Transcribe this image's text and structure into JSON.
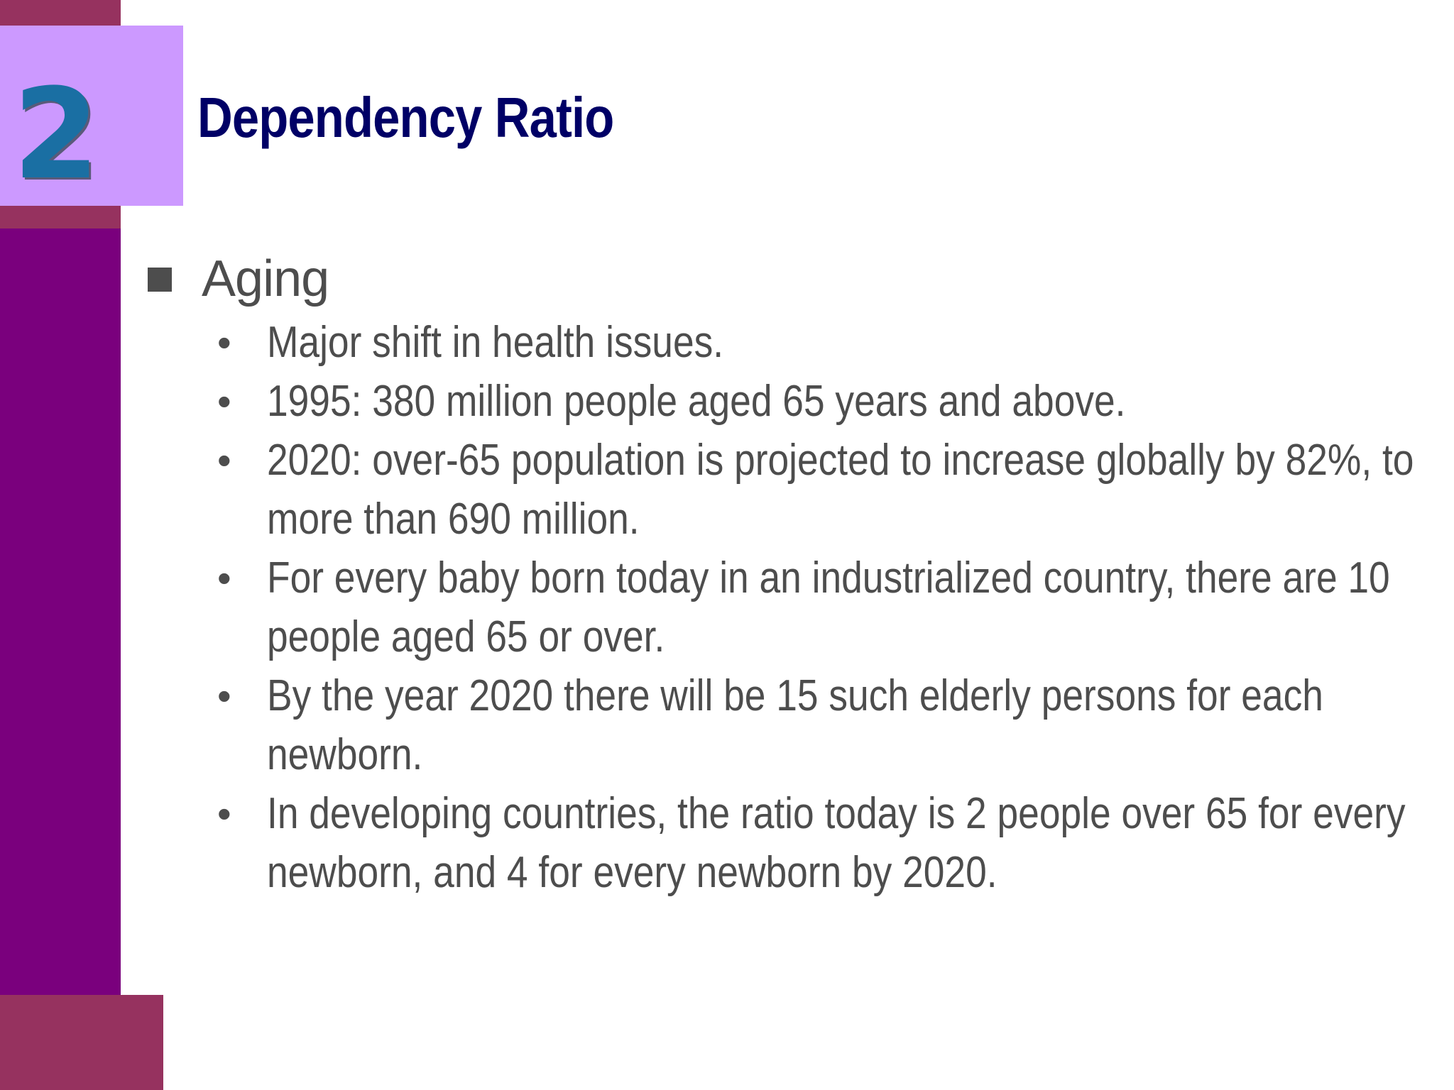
{
  "slide": {
    "number": "2",
    "title": "Dependency Ratio",
    "colors": {
      "maroon": "#96325f",
      "purple": "#7a007d",
      "lavender": "#cc99ff",
      "number_blue": "#1a6fa3",
      "title_navy": "#000066",
      "body_gray": "#4d4d4d"
    },
    "heading": "Aging",
    "bullets": [
      {
        "text": "Major shift in health issues."
      },
      {
        "text": "1995: 380 million people aged 65 years and above."
      },
      {
        "text": "2020: over-65 population is projected to increase globally by 82%, to more than 690 million."
      },
      {
        "text": "For every baby born today in an industrialized country, there are 10 people aged 65 or over."
      },
      {
        "text": "By the year 2020 there will be 15 such elderly persons for each newborn."
      },
      {
        "text": "In developing countries, the ratio today is 2 people over 65 for every newborn, and 4 for every newborn by 2020."
      }
    ]
  }
}
